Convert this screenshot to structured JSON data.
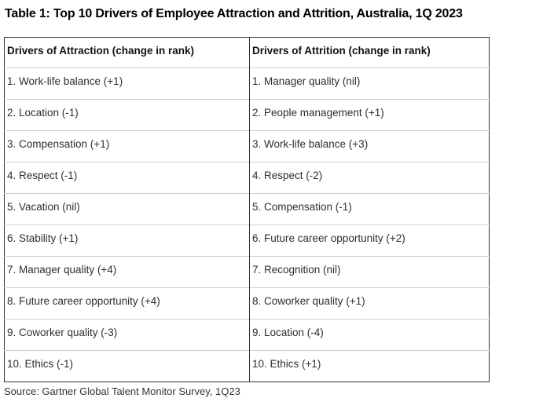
{
  "title": "Table 1: Top 10 Drivers of Employee Attraction and Attrition, Australia, 1Q 2023",
  "table": {
    "headers": [
      "Drivers of Attraction (change in rank)",
      "Drivers of Attrition (change in rank)"
    ],
    "rows": [
      [
        "1. Work-life balance (+1)",
        "1. Manager quality (nil)"
      ],
      [
        "2. Location (-1)",
        "2. People management (+1)"
      ],
      [
        "3. Compensation (+1)",
        "3. Work-life balance (+3)"
      ],
      [
        "4. Respect (-1)",
        "4. Respect (-2)"
      ],
      [
        "5. Vacation (nil)",
        "5. Compensation (-1)"
      ],
      [
        "6. Stability (+1)",
        "6. Future career opportunity (+2)"
      ],
      [
        "7. Manager quality (+4)",
        "7. Recognition (nil)"
      ],
      [
        "8. Future career opportunity (+4)",
        "8. Coworker quality (+1)"
      ],
      [
        "9. Coworker quality (-3)",
        "9. Location (-4)"
      ],
      [
        "10. Ethics (-1)",
        "10. Ethics (+1)"
      ]
    ]
  },
  "source": "Source: Gartner Global Talent Monitor Survey, 1Q23",
  "colors": {
    "outer_border": "#333333",
    "row_divider": "#cccccc",
    "title_text": "#000000",
    "body_text": "#2e2e2e",
    "background": "#ffffff"
  }
}
